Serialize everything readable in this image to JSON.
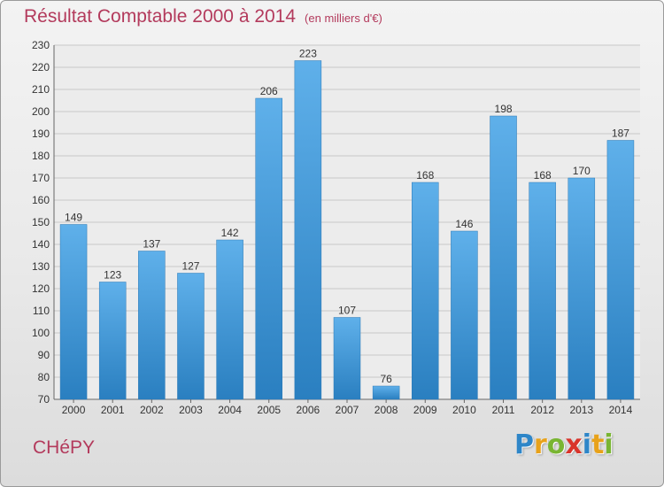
{
  "title": "Résultat Comptable 2000 à 2014",
  "unit_note": "(en milliers d'€)",
  "commune": "CHéPY",
  "logo": {
    "text": "Proxiti",
    "letters": [
      {
        "ch": "P",
        "color": "#2e86c8"
      },
      {
        "ch": "r",
        "color": "#e8a21a"
      },
      {
        "ch": "o",
        "color": "#79b532"
      },
      {
        "ch": "x",
        "color": "#d9342b"
      },
      {
        "ch": "i",
        "color": "#2e86c8"
      },
      {
        "ch": "t",
        "color": "#e8a21a"
      },
      {
        "ch": "i",
        "color": "#79b532"
      }
    ]
  },
  "colors": {
    "bar_light": "#5fb0ea",
    "bar_dark": "#2a7fc0",
    "accent": "#b33a5c"
  },
  "chart_data": {
    "type": "bar",
    "categories": [
      "2000",
      "2001",
      "2002",
      "2003",
      "2004",
      "2005",
      "2006",
      "2007",
      "2008",
      "2009",
      "2010",
      "2011",
      "2012",
      "2013",
      "2014"
    ],
    "values": [
      149,
      123,
      137,
      127,
      142,
      206,
      223,
      107,
      76,
      168,
      146,
      198,
      168,
      170,
      187
    ],
    "ylim": [
      70,
      230
    ],
    "yticks": [
      70,
      80,
      90,
      100,
      110,
      120,
      130,
      140,
      150,
      160,
      170,
      180,
      190,
      200,
      210,
      220,
      230
    ],
    "grid": true,
    "legend": "none"
  }
}
